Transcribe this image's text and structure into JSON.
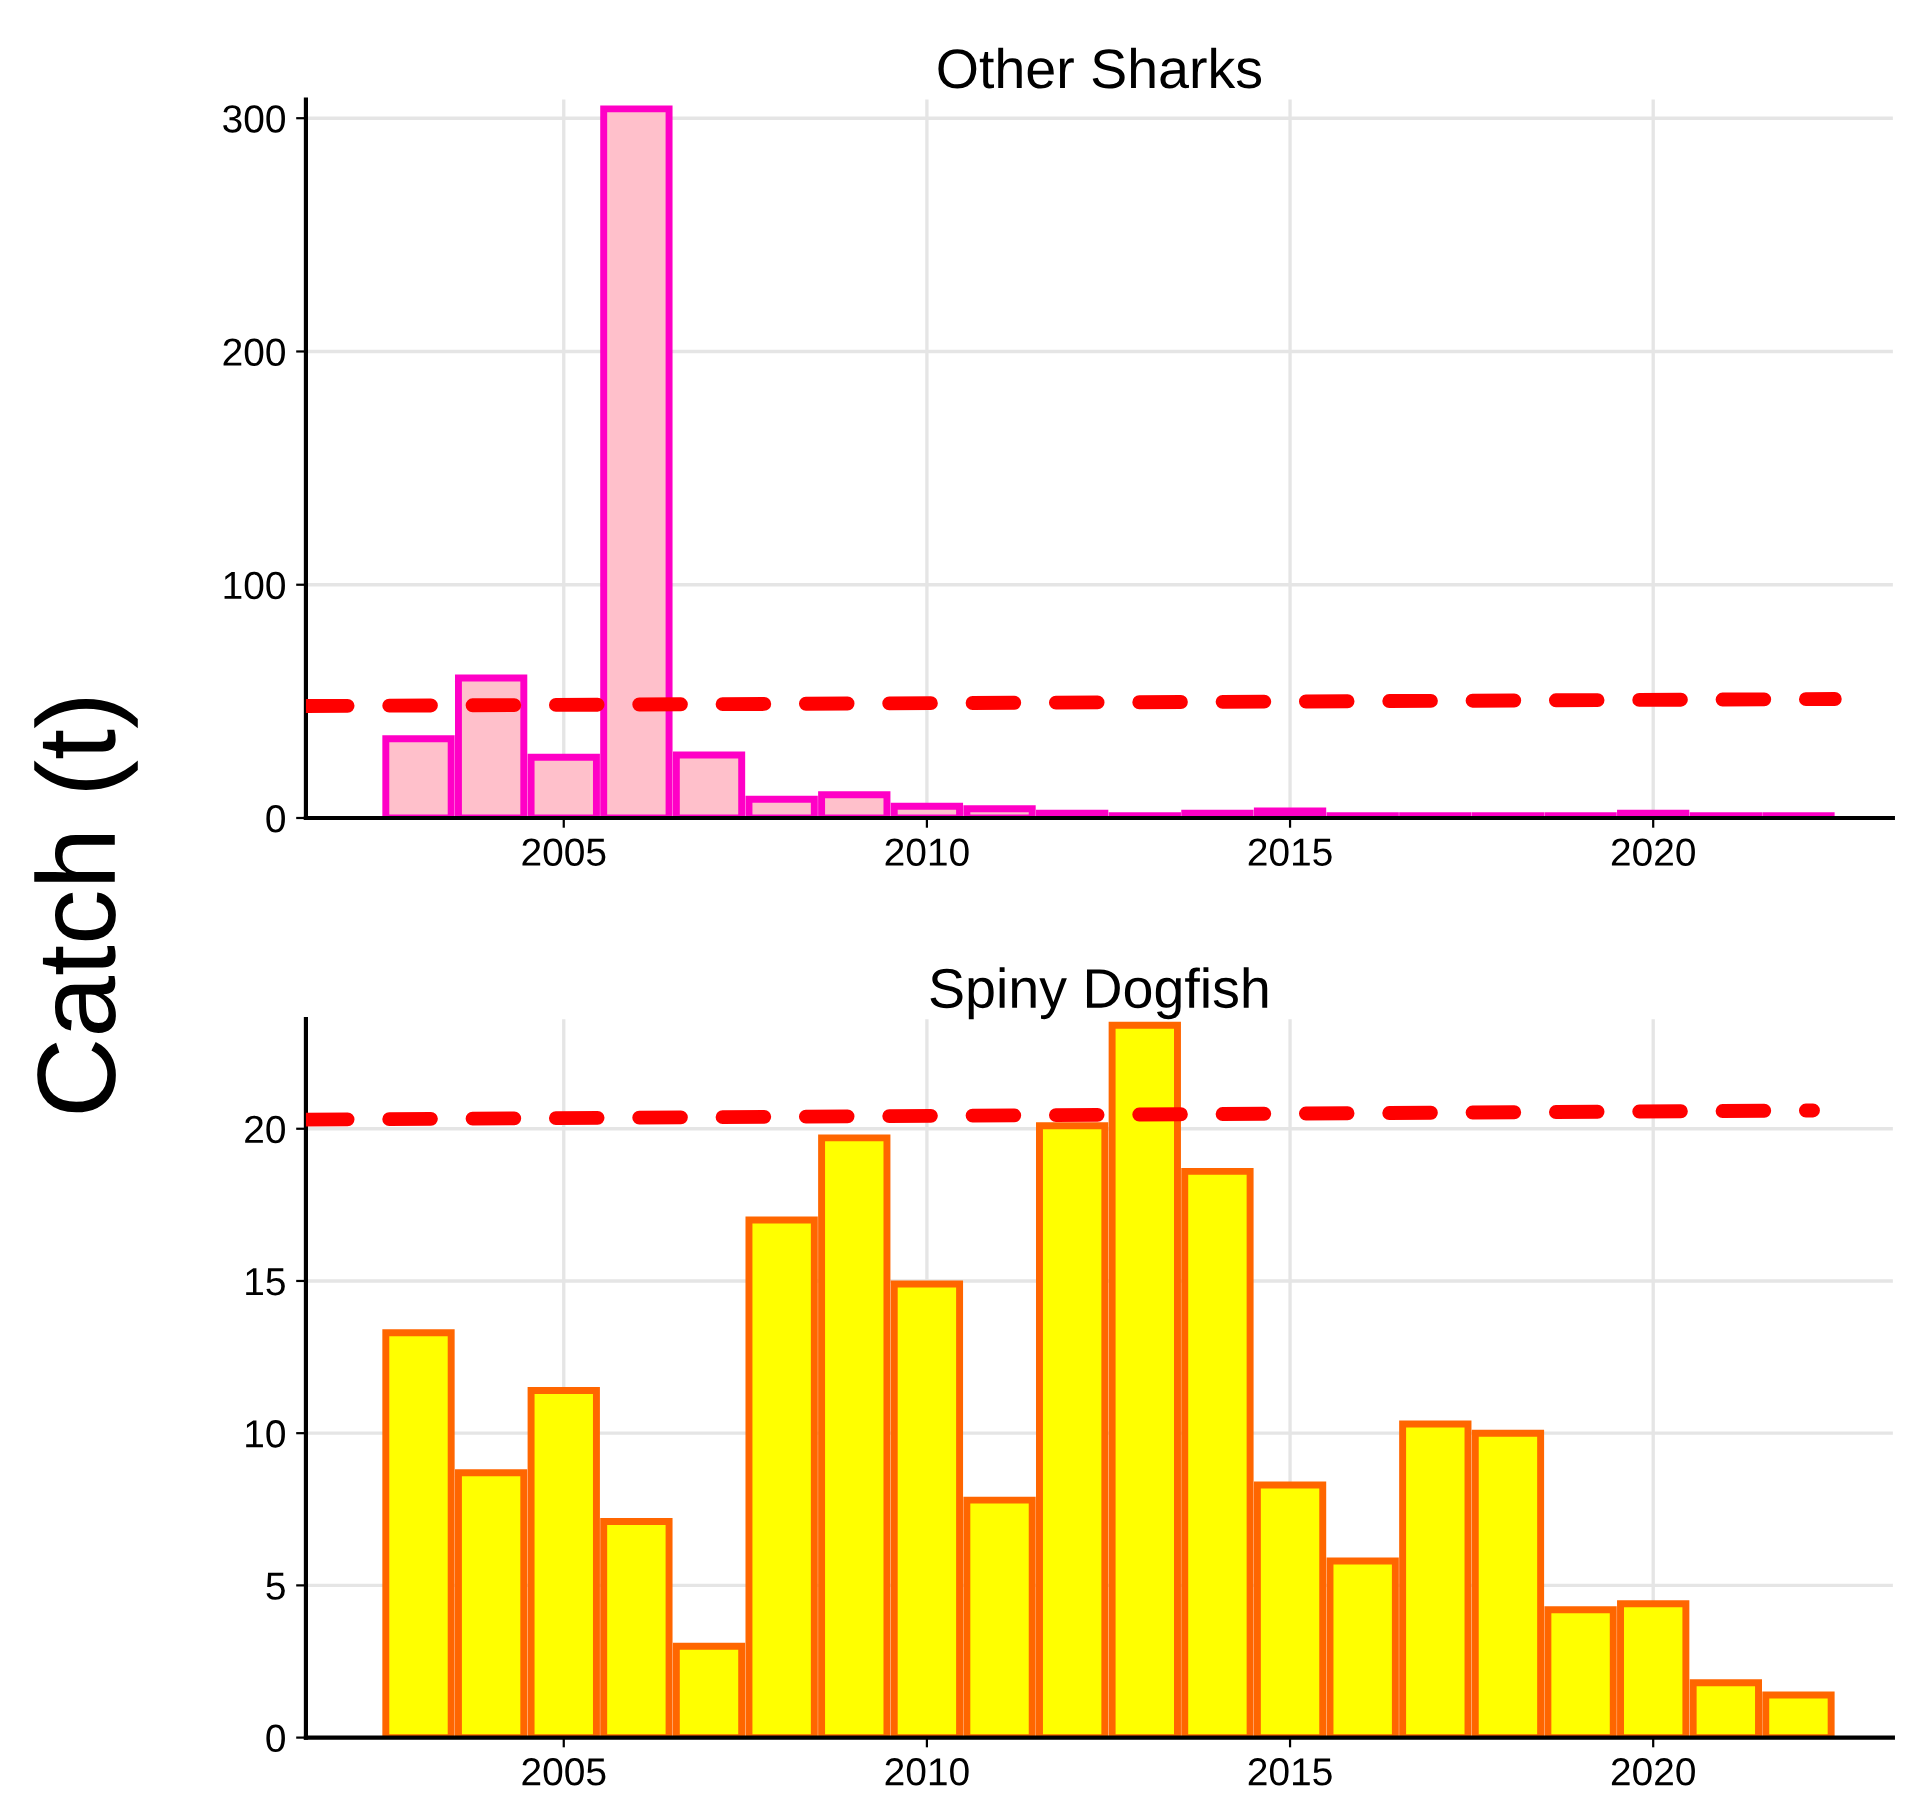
{
  "chart_data": [
    {
      "type": "bar",
      "title": "Other Sharks",
      "ylabel": "Catch (t)",
      "x": [
        2003,
        2004,
        2005,
        2006,
        2007,
        2008,
        2009,
        2010,
        2011,
        2012,
        2013,
        2014,
        2015,
        2016,
        2017,
        2018,
        2019,
        2020,
        2021,
        2022
      ],
      "series": [
        {
          "color": "#ffc0cb",
          "values": [
            34,
            60,
            26,
            304,
            27,
            8,
            10,
            5,
            4,
            2,
            1,
            2,
            3,
            1,
            1,
            1,
            1,
            2,
            1,
            1
          ]
        },
        {
          "type": "line",
          "color": "#ff0000",
          "line_style": "dashed",
          "x": [
            2001.45,
            2022.5
          ],
          "values": [
            48,
            51
          ]
        }
      ],
      "xlim": [
        2001.45,
        2023.3
      ],
      "xticks": [
        2005,
        2010,
        2015,
        2020
      ],
      "ylim": [
        0,
        308
      ],
      "yticks": [
        0,
        100,
        200,
        300
      ],
      "grid": true
    },
    {
      "type": "bar",
      "title": "Spiny Dogfish",
      "x": [
        2003,
        2004,
        2005,
        2006,
        2007,
        2008,
        2009,
        2010,
        2011,
        2012,
        2013,
        2014,
        2015,
        2016,
        2017,
        2018,
        2019,
        2020,
        2021,
        2022
      ],
      "series": [
        {
          "color": "#ffff00",
          "values": [
            13.3,
            8.7,
            11.4,
            7.1,
            3.0,
            17.0,
            19.7,
            14.9,
            7.8,
            20.1,
            23.4,
            18.6,
            8.3,
            5.8,
            10.3,
            10.0,
            4.2,
            4.4,
            1.8,
            1.4
          ]
        },
        {
          "type": "line",
          "color": "#ff0000",
          "line_style": "dashed",
          "x": [
            2001.45,
            2022.2
          ],
          "values": [
            20.3,
            20.6
          ]
        }
      ],
      "xlim": [
        2001.45,
        2023.3
      ],
      "xticks": [
        2005,
        2010,
        2015,
        2020
      ],
      "ylim": [
        0,
        23.6
      ],
      "yticks": [
        0,
        5,
        10,
        15,
        20
      ],
      "grid": true
    }
  ]
}
